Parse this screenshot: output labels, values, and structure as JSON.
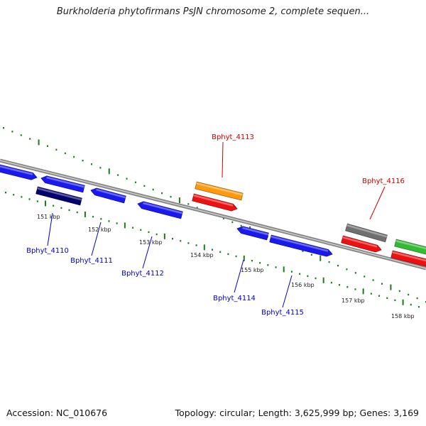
{
  "title": "Burkholderia phytofirmans PsJN chromosome 2, complete sequen...",
  "footer": {
    "accession": "Accession: NC_010676",
    "summary": "Topology: circular; Length: 3,625,999 bp; Genes: 3,169"
  },
  "colors": {
    "backbone": "#888888",
    "tick": "#1f7a1f",
    "blue": "#1a1aee",
    "navy": "#00006e",
    "red": "#ee1111",
    "orange": "#ff9a10",
    "gray": "#707070",
    "green": "#33bb33",
    "label_blue": "#0000cc",
    "label_red": "#cc0000"
  },
  "kbp_labels": [
    "151 kbp",
    "152 kbp",
    "153 kbp",
    "154 kbp",
    "155 kbp",
    "156 kbp",
    "157 kbp",
    "158 kbp"
  ],
  "genes": [
    {
      "label": "Bphyt_4110",
      "color": "label_blue"
    },
    {
      "label": "Bphyt_4111",
      "color": "label_blue"
    },
    {
      "label": "Bphyt_4112",
      "color": "label_blue"
    },
    {
      "label": "Bphyt_4113",
      "color": "label_red"
    },
    {
      "label": "Bphyt_4114",
      "color": "label_blue"
    },
    {
      "label": "Bphyt_4115",
      "color": "label_blue"
    },
    {
      "label": "Bphyt_4116",
      "color": "label_red"
    }
  ]
}
